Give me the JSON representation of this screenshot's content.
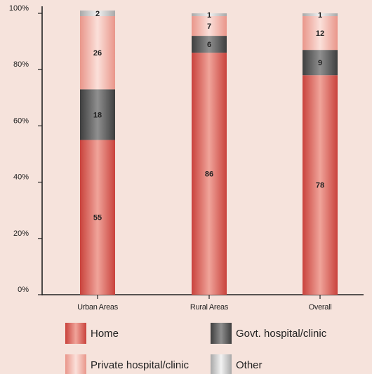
{
  "chart_data": {
    "type": "bar",
    "stacked": true,
    "categories": [
      "Urban Areas",
      "Rural Areas",
      "Overall"
    ],
    "series": [
      {
        "name": "Home",
        "values": [
          55,
          86,
          78
        ],
        "color": "#d2554e"
      },
      {
        "name": "Govt. hospital/clinic",
        "values": [
          18,
          6,
          9
        ],
        "color": "#5d5d5d"
      },
      {
        "name": "Private hospital/clinic",
        "values": [
          26,
          7,
          12
        ],
        "color": "#eeaba0"
      },
      {
        "name": "Other",
        "values": [
          2,
          1,
          1
        ],
        "color": "#c9c9c9"
      }
    ],
    "y_ticks": [
      "0%",
      "20%",
      "40%",
      "60%",
      "80%",
      "100%"
    ],
    "ylim": [
      0,
      100
    ],
    "grid": false,
    "legend_position": "bottom",
    "title": "",
    "xlabel": "",
    "ylabel": ""
  }
}
